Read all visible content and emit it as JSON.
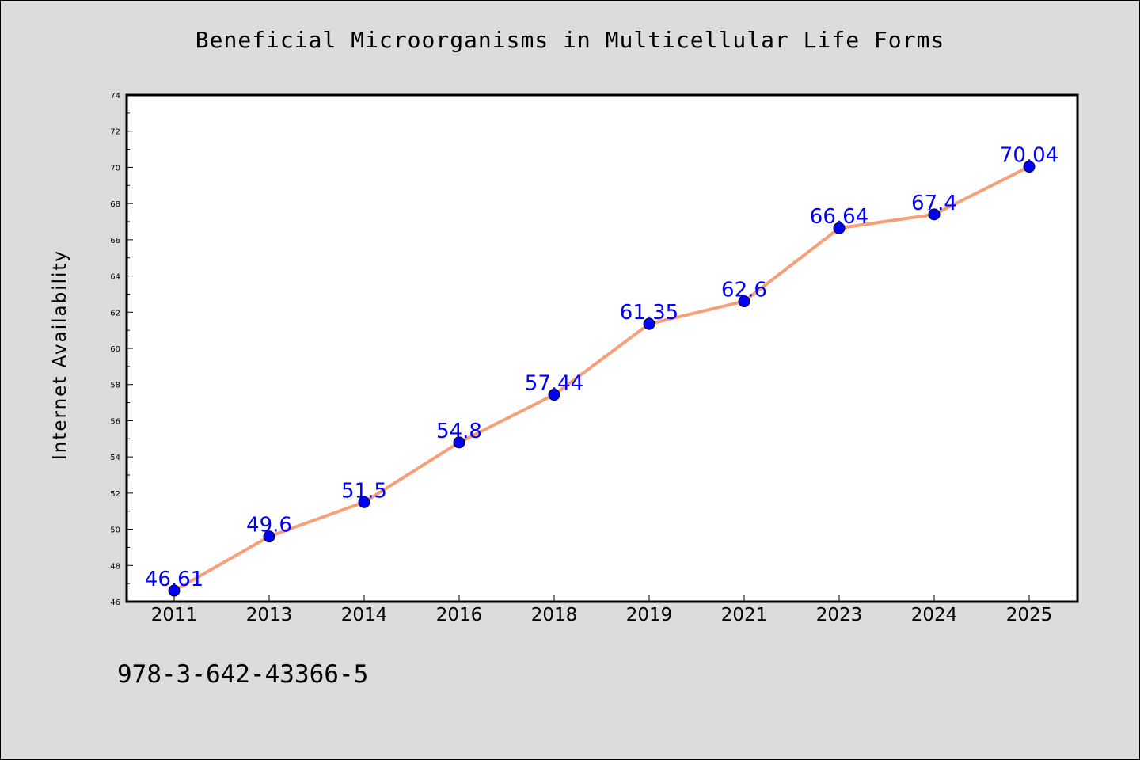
{
  "chart_data": {
    "type": "line",
    "title": "Beneficial Microorganisms in Multicellular Life Forms",
    "xlabel": "",
    "ylabel": "Internet Availability",
    "categories": [
      "2011",
      "2013",
      "2014",
      "2016",
      "2018",
      "2019",
      "2021",
      "2023",
      "2024",
      "2025"
    ],
    "series": [
      {
        "values": [
          46.61,
          49.6,
          51.5,
          54.8,
          57.44,
          61.35,
          62.6,
          66.64,
          67.4,
          70.04
        ],
        "labels": [
          "46.61",
          "49.6",
          "51.5",
          "54.8",
          "57.44",
          "61.35",
          "62.6",
          "66.64",
          "67.4",
          "70.04"
        ]
      }
    ],
    "ylim": [
      46,
      74
    ],
    "y_ticks": [
      "46",
      "48",
      "50",
      "52",
      "54",
      "56",
      "58",
      "60",
      "62",
      "64",
      "66",
      "68",
      "70",
      "72",
      "74"
    ],
    "grid": false,
    "colors": {
      "line": "#f4a07a",
      "marker": "#0000ff",
      "marker_edge": "#000000",
      "data_label": "#0000ff",
      "plot_background": "#ffffff",
      "figure_background": "#dcdcdc"
    }
  },
  "footer": {
    "text": "978-3-642-43366-5"
  }
}
